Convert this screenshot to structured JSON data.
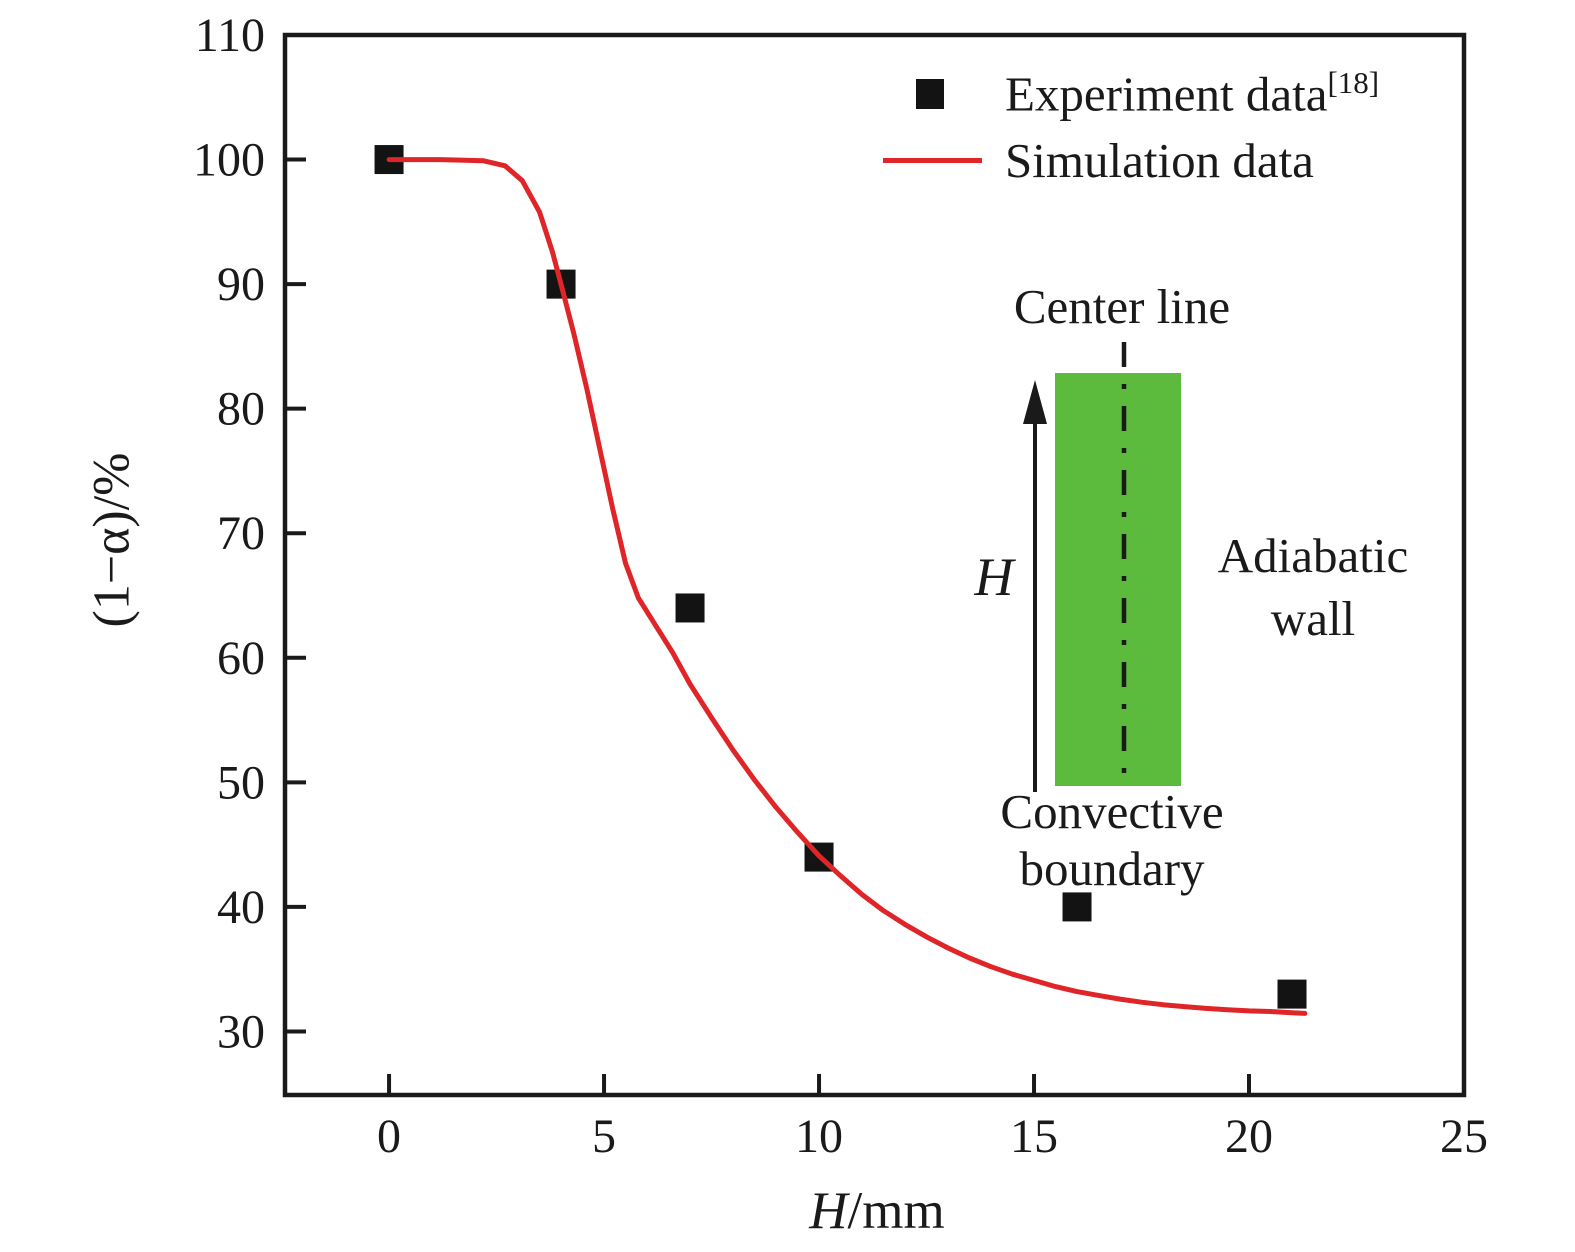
{
  "chart_data": {
    "type": "line",
    "title": "",
    "xlabel": "H/mm",
    "xlabel_parts": [
      "H",
      "/mm"
    ],
    "ylabel": "(1−α)/%",
    "xlim": [
      -2.42,
      25
    ],
    "ylim": [
      24.9,
      110
    ],
    "xticks": [
      0,
      5,
      10,
      15,
      20,
      25
    ],
    "yticks": [
      110,
      100,
      90,
      80,
      70,
      60,
      50,
      40,
      30
    ],
    "grid": false,
    "legend_position": "top-right-inside",
    "series": [
      {
        "name": "Experiment data",
        "ref": "[18]",
        "type": "scatter",
        "marker": "square",
        "color": "#131313",
        "points": [
          [
            0,
            100
          ],
          [
            4,
            90
          ],
          [
            7,
            64
          ],
          [
            10,
            44
          ],
          [
            16,
            40
          ],
          [
            21,
            33
          ]
        ]
      },
      {
        "name": "Simulation data",
        "type": "line",
        "color": "#e02528",
        "points": [
          [
            0,
            100
          ],
          [
            1.2,
            100
          ],
          [
            2.2,
            99.9
          ],
          [
            2.7,
            99.5
          ],
          [
            3.1,
            98.3
          ],
          [
            3.5,
            95.8
          ],
          [
            3.8,
            92.6
          ],
          [
            4.0,
            90.0
          ],
          [
            4.3,
            86.0
          ],
          [
            4.6,
            81.6
          ],
          [
            4.9,
            76.8
          ],
          [
            5.2,
            72.0
          ],
          [
            5.5,
            67.6
          ],
          [
            5.8,
            64.8
          ],
          [
            6.2,
            62.6
          ],
          [
            6.6,
            60.4
          ],
          [
            7.0,
            57.9
          ],
          [
            7.5,
            55.2
          ],
          [
            8.0,
            52.6
          ],
          [
            8.5,
            50.2
          ],
          [
            9.0,
            48.0
          ],
          [
            9.5,
            46.0
          ],
          [
            10.0,
            44.1
          ],
          [
            10.5,
            42.5
          ],
          [
            11.0,
            41.0
          ],
          [
            11.5,
            39.7
          ],
          [
            12.0,
            38.6
          ],
          [
            12.5,
            37.6
          ],
          [
            13.0,
            36.7
          ],
          [
            13.5,
            35.9
          ],
          [
            14.0,
            35.2
          ],
          [
            14.5,
            34.6
          ],
          [
            15.0,
            34.1
          ],
          [
            15.5,
            33.6
          ],
          [
            16.0,
            33.2
          ],
          [
            16.5,
            32.9
          ],
          [
            17.0,
            32.6
          ],
          [
            17.5,
            32.35
          ],
          [
            18.0,
            32.15
          ],
          [
            18.5,
            32.0
          ],
          [
            19.0,
            31.85
          ],
          [
            19.5,
            31.75
          ],
          [
            20.0,
            31.65
          ],
          [
            20.5,
            31.6
          ],
          [
            21.0,
            31.5
          ],
          [
            21.3,
            31.45
          ]
        ]
      }
    ],
    "colors": {
      "simulation_line": "#e02528",
      "experiment_marker": "#131313",
      "inset_fill": "#5cbb3d",
      "axis": "#1a1a1a",
      "text": "#1a1a1a"
    },
    "annotations": {
      "center_line": "Center line",
      "h_arrow_label": "H",
      "adiabatic_wall": "Adiabatic\nwall",
      "convective_boundary": "Convective\nboundary"
    }
  }
}
